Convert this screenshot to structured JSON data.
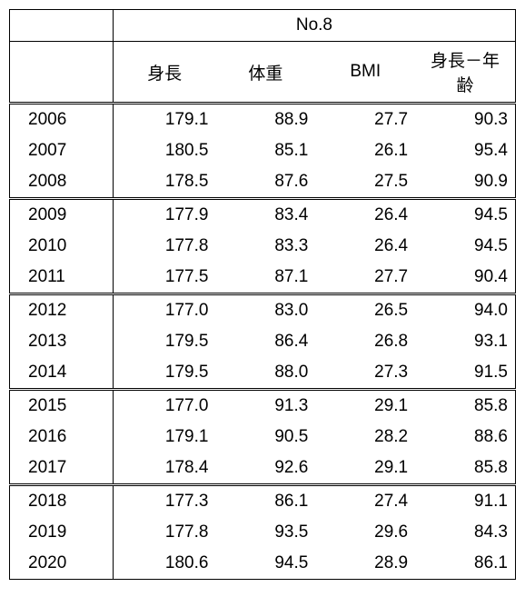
{
  "table": {
    "title": "No.8",
    "columns": [
      "身長",
      "体重",
      "BMI",
      "身長－年齢"
    ],
    "groups": [
      {
        "rows": [
          {
            "year": "2006",
            "c1": "179.1",
            "c2": "88.9",
            "c3": "27.7",
            "c4": "90.3"
          },
          {
            "year": "2007",
            "c1": "180.5",
            "c2": "85.1",
            "c3": "26.1",
            "c4": "95.4"
          },
          {
            "year": "2008",
            "c1": "178.5",
            "c2": "87.6",
            "c3": "27.5",
            "c4": "90.9"
          }
        ]
      },
      {
        "rows": [
          {
            "year": "2009",
            "c1": "177.9",
            "c2": "83.4",
            "c3": "26.4",
            "c4": "94.5"
          },
          {
            "year": "2010",
            "c1": "177.8",
            "c2": "83.3",
            "c3": "26.4",
            "c4": "94.5"
          },
          {
            "year": "2011",
            "c1": "177.5",
            "c2": "87.1",
            "c3": "27.7",
            "c4": "90.4"
          }
        ]
      },
      {
        "rows": [
          {
            "year": "2012",
            "c1": "177.0",
            "c2": "83.0",
            "c3": "26.5",
            "c4": "94.0"
          },
          {
            "year": "2013",
            "c1": "179.5",
            "c2": "86.4",
            "c3": "26.8",
            "c4": "93.1"
          },
          {
            "year": "2014",
            "c1": "179.5",
            "c2": "88.0",
            "c3": "27.3",
            "c4": "91.5"
          }
        ]
      },
      {
        "rows": [
          {
            "year": "2015",
            "c1": "177.0",
            "c2": "91.3",
            "c3": "29.1",
            "c4": "85.8"
          },
          {
            "year": "2016",
            "c1": "179.1",
            "c2": "90.5",
            "c3": "28.2",
            "c4": "88.6"
          },
          {
            "year": "2017",
            "c1": "178.4",
            "c2": "92.6",
            "c3": "29.1",
            "c4": "85.8"
          }
        ]
      },
      {
        "rows": [
          {
            "year": "2018",
            "c1": "177.3",
            "c2": "86.1",
            "c3": "27.4",
            "c4": "91.1"
          },
          {
            "year": "2019",
            "c1": "177.8",
            "c2": "93.5",
            "c3": "29.6",
            "c4": "84.3"
          },
          {
            "year": "2020",
            "c1": "180.6",
            "c2": "94.5",
            "c3": "28.9",
            "c4": "86.1"
          }
        ]
      }
    ]
  }
}
